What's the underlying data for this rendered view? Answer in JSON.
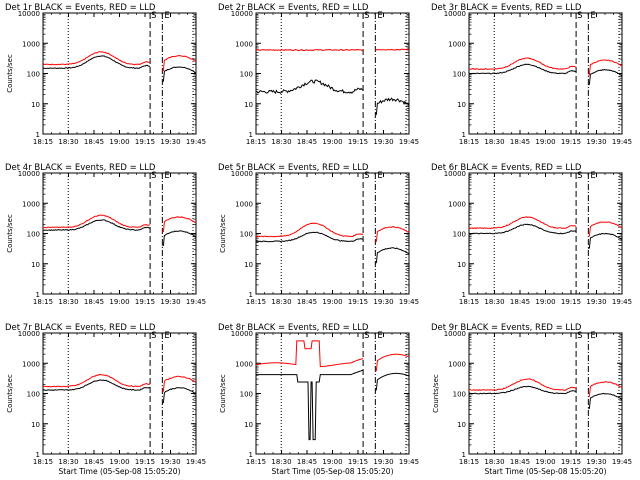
{
  "colors": {
    "background": "#ffffff",
    "events": "#000000",
    "lld": "#ff0000",
    "axes": "#000000"
  },
  "chart_data": [
    {
      "type": "line",
      "title": "Det 1r BLACK = Events, RED = LLD",
      "ylabel": "Counts/sec",
      "xlabel": "",
      "x_ticks": [
        "18:15",
        "18:30",
        "18:45",
        "19:00",
        "19:15",
        "19:30",
        "19:45"
      ],
      "y_ticks": [
        "1",
        "10",
        "100",
        "1000",
        "10000"
      ],
      "ylim": [
        1,
        10000
      ],
      "y_scale": "log",
      "markers": [
        "S",
        "E"
      ],
      "series": [
        {
          "name": "Events",
          "color": "#000000",
          "profile": "smooth",
          "base": 150,
          "peak": 380,
          "post": 150
        },
        {
          "name": "LLD",
          "color": "#ff0000",
          "profile": "smooth",
          "base": 200,
          "peak": 520,
          "post": 350
        }
      ]
    },
    {
      "type": "line",
      "title": "Det 2r BLACK = Events, RED = LLD",
      "ylabel": "",
      "xlabel": "",
      "x_ticks": [
        "18:15",
        "18:30",
        "18:45",
        "19:00",
        "19:15",
        "19:30",
        "19:45"
      ],
      "y_ticks": [
        "1",
        "10",
        "100",
        "1000",
        "10000"
      ],
      "ylim": [
        1,
        10000
      ],
      "y_scale": "log",
      "markers": [
        "S",
        "E"
      ],
      "series": [
        {
          "name": "Events",
          "color": "#000000",
          "profile": "smooth-noisy",
          "base": 25,
          "peak": 55,
          "post": 13
        },
        {
          "name": "LLD",
          "color": "#ff0000",
          "profile": "flat",
          "base": 600,
          "peak": 650,
          "post": 620
        }
      ]
    },
    {
      "type": "line",
      "title": "Det 3r BLACK = Events, RED = LLD",
      "ylabel": "",
      "xlabel": "",
      "x_ticks": [
        "18:15",
        "18:30",
        "18:45",
        "19:00",
        "19:15",
        "19:30",
        "19:45"
      ],
      "y_ticks": [
        "1",
        "10",
        "100",
        "1000",
        "10000"
      ],
      "ylim": [
        1,
        10000
      ],
      "y_scale": "log",
      "markers": [
        "S",
        "E"
      ],
      "series": [
        {
          "name": "Events",
          "color": "#000000",
          "profile": "smooth",
          "base": 100,
          "peak": 200,
          "post": 120
        },
        {
          "name": "LLD",
          "color": "#ff0000",
          "profile": "smooth",
          "base": 140,
          "peak": 320,
          "post": 250
        }
      ]
    },
    {
      "type": "line",
      "title": "Det 4r BLACK = Events, RED = LLD",
      "ylabel": "Counts/sec",
      "xlabel": "",
      "x_ticks": [
        "18:15",
        "18:30",
        "18:45",
        "19:00",
        "19:15",
        "19:30",
        "19:45"
      ],
      "y_ticks": [
        "1",
        "10",
        "100",
        "1000",
        "10000"
      ],
      "ylim": [
        1,
        10000
      ],
      "y_scale": "log",
      "markers": [
        "S",
        "E"
      ],
      "series": [
        {
          "name": "Events",
          "color": "#000000",
          "profile": "smooth",
          "base": 130,
          "peak": 280,
          "post": 110
        },
        {
          "name": "LLD",
          "color": "#ff0000",
          "profile": "smooth",
          "base": 160,
          "peak": 400,
          "post": 320
        }
      ]
    },
    {
      "type": "line",
      "title": "Det 5r BLACK = Events, RED = LLD",
      "ylabel": "Counts/sec",
      "xlabel": "",
      "x_ticks": [
        "18:15",
        "18:30",
        "18:45",
        "19:00",
        "19:15",
        "19:30",
        "19:45"
      ],
      "y_ticks": [
        "1",
        "10",
        "100",
        "1000",
        "10000"
      ],
      "ylim": [
        1,
        10000
      ],
      "y_scale": "log",
      "markers": [
        "S",
        "E"
      ],
      "series": [
        {
          "name": "Events",
          "color": "#000000",
          "profile": "smooth",
          "base": 55,
          "peak": 110,
          "post": 30
        },
        {
          "name": "LLD",
          "color": "#ff0000",
          "profile": "smooth",
          "base": 80,
          "peak": 220,
          "post": 150
        }
      ]
    },
    {
      "type": "line",
      "title": "Det 6r BLACK = Events, RED = LLD",
      "ylabel": "",
      "xlabel": "",
      "x_ticks": [
        "18:15",
        "18:30",
        "18:45",
        "19:00",
        "19:15",
        "19:30",
        "19:45"
      ],
      "y_ticks": [
        "1",
        "10",
        "100",
        "1000",
        "10000"
      ],
      "ylim": [
        1,
        10000
      ],
      "y_scale": "log",
      "markers": [
        "S",
        "E"
      ],
      "series": [
        {
          "name": "Events",
          "color": "#000000",
          "profile": "smooth",
          "base": 100,
          "peak": 200,
          "post": 90
        },
        {
          "name": "LLD",
          "color": "#ff0000",
          "profile": "smooth",
          "base": 150,
          "peak": 350,
          "post": 220
        }
      ]
    },
    {
      "type": "line",
      "title": "Det 7r BLACK = Events, RED = LLD",
      "ylabel": "Counts/sec",
      "xlabel": "Start Time (05-Sep-08 15:05:20)",
      "x_ticks": [
        "18:15",
        "18:30",
        "18:45",
        "19:00",
        "19:15",
        "19:30",
        "19:45"
      ],
      "y_ticks": [
        "1",
        "10",
        "100",
        "1000",
        "10000"
      ],
      "ylim": [
        1,
        10000
      ],
      "y_scale": "log",
      "markers": [
        "S",
        "E"
      ],
      "series": [
        {
          "name": "Events",
          "color": "#000000",
          "profile": "smooth",
          "base": 130,
          "peak": 280,
          "post": 140
        },
        {
          "name": "LLD",
          "color": "#ff0000",
          "profile": "smooth",
          "base": 170,
          "peak": 420,
          "post": 330
        }
      ]
    },
    {
      "type": "line",
      "title": "Det 8r BLACK = Events, RED = LLD",
      "ylabel": "Counts/sec",
      "xlabel": "Start Time (05-Sep-08 15:05:20)",
      "x_ticks": [
        "18:15",
        "18:30",
        "18:45",
        "19:00",
        "19:15",
        "19:30",
        "19:45"
      ],
      "y_ticks": [
        "1",
        "10",
        "100",
        "1000",
        "10000"
      ],
      "ylim": [
        1,
        10000
      ],
      "y_scale": "log",
      "markers": [
        "S",
        "E"
      ],
      "series": [
        {
          "name": "Events",
          "color": "#000000",
          "profile": "burst-dip",
          "base": 420,
          "peak": 600,
          "post": 420
        },
        {
          "name": "LLD",
          "color": "#ff0000",
          "profile": "burst",
          "base": 900,
          "peak": 5500,
          "post": 1800
        }
      ]
    },
    {
      "type": "line",
      "title": "Det 9r BLACK = Events, RED = LLD",
      "ylabel": "Counts/sec",
      "xlabel": "Start Time (05-Sep-08 15:05:20)",
      "x_ticks": [
        "18:15",
        "18:30",
        "18:45",
        "19:00",
        "19:15",
        "19:30",
        "19:45"
      ],
      "y_ticks": [
        "1",
        "10",
        "100",
        "1000",
        "10000"
      ],
      "ylim": [
        1,
        10000
      ],
      "y_scale": "log",
      "markers": [
        "S",
        "E"
      ],
      "series": [
        {
          "name": "Events",
          "color": "#000000",
          "profile": "smooth",
          "base": 100,
          "peak": 170,
          "post": 90
        },
        {
          "name": "LLD",
          "color": "#ff0000",
          "profile": "smooth",
          "base": 130,
          "peak": 300,
          "post": 220
        }
      ]
    }
  ]
}
